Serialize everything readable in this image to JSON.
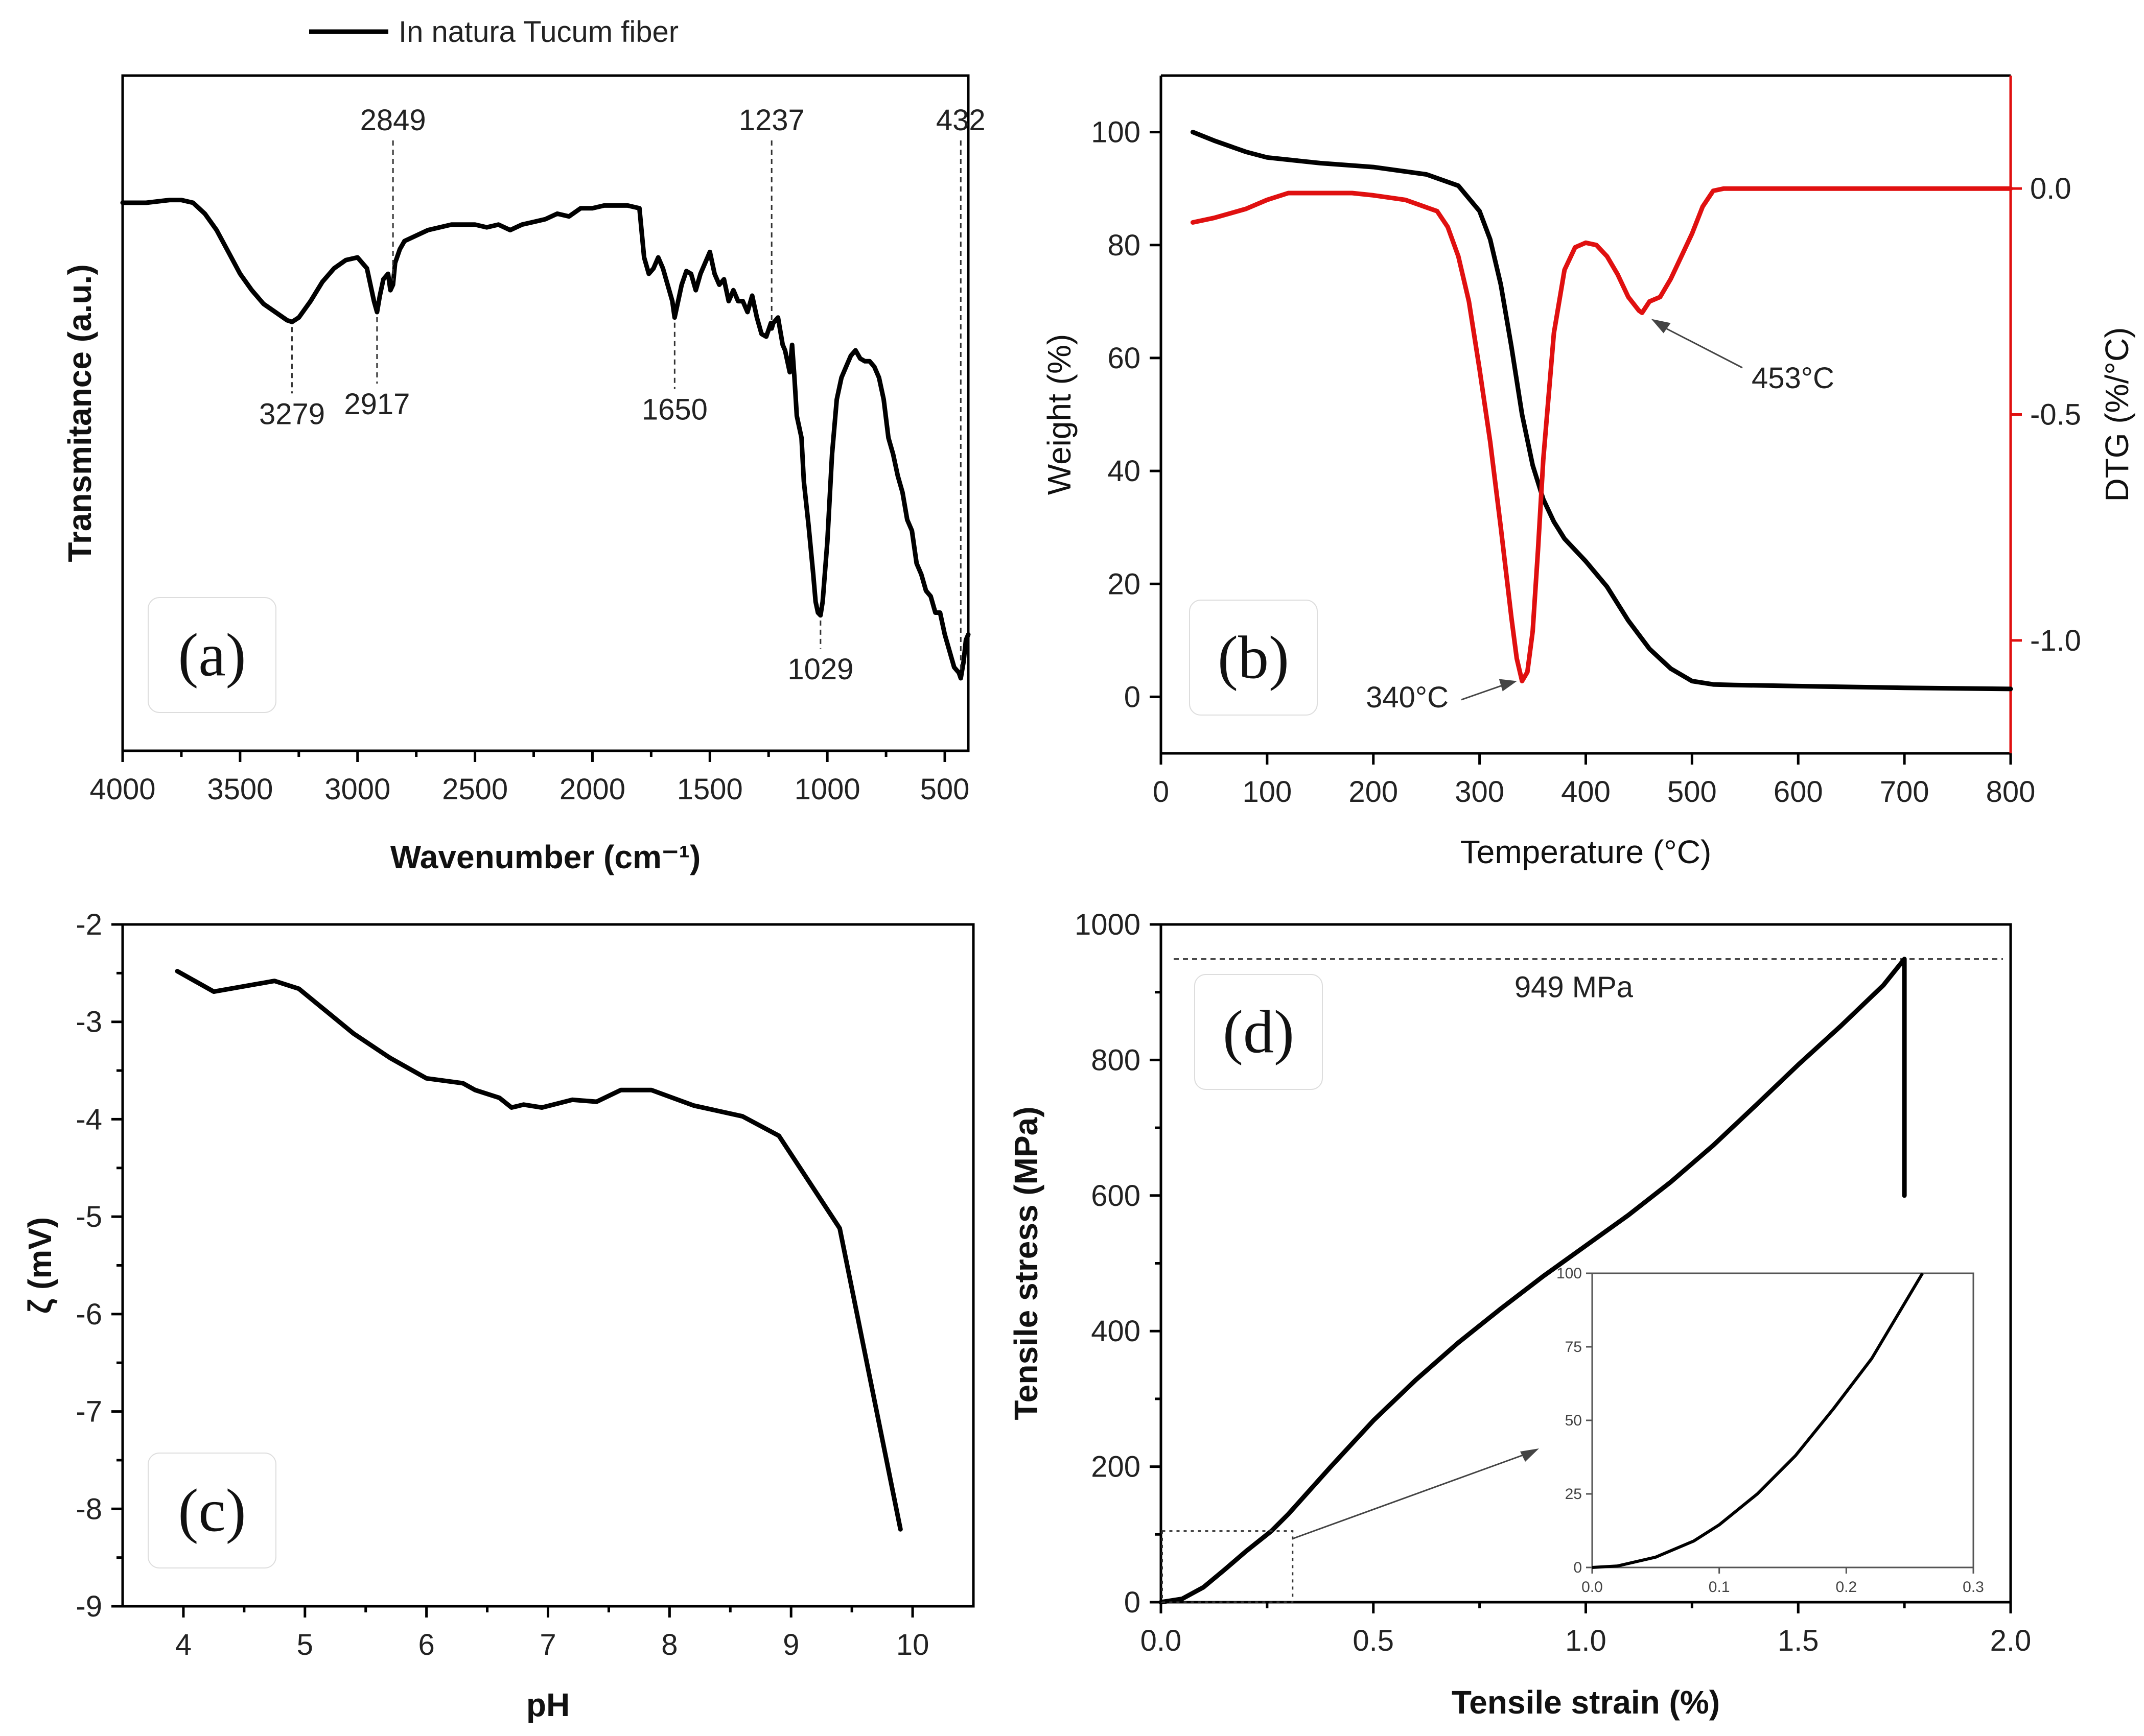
{
  "chart_data": [
    {
      "panel": "a",
      "type": "line",
      "legend": "In natura Tucum fiber",
      "xlabel": "Wavenumber (cm⁻¹)",
      "ylabel": "Transmitance (a.u.)",
      "xlim": [
        4000,
        400
      ],
      "ylim": [
        0,
        1
      ],
      "xticks": [
        4000,
        3500,
        3000,
        2500,
        2000,
        1500,
        1000,
        500
      ],
      "series": [
        {
          "name": "In natura Tucum fiber",
          "x": [
            4000,
            3900,
            3800,
            3750,
            3700,
            3650,
            3600,
            3550,
            3500,
            3450,
            3400,
            3350,
            3300,
            3279,
            3250,
            3200,
            3150,
            3100,
            3050,
            3000,
            2960,
            2940,
            2930,
            2917,
            2905,
            2890,
            2870,
            2860,
            2849,
            2840,
            2820,
            2800,
            2750,
            2700,
            2650,
            2600,
            2550,
            2500,
            2450,
            2400,
            2350,
            2300,
            2250,
            2200,
            2150,
            2100,
            2050,
            2000,
            1950,
            1900,
            1850,
            1800,
            1780,
            1760,
            1740,
            1720,
            1700,
            1680,
            1660,
            1650,
            1640,
            1620,
            1600,
            1580,
            1560,
            1540,
            1520,
            1500,
            1480,
            1460,
            1440,
            1420,
            1400,
            1380,
            1360,
            1340,
            1320,
            1300,
            1280,
            1260,
            1240,
            1237,
            1230,
            1210,
            1190,
            1180,
            1160,
            1150,
            1140,
            1130,
            1110,
            1100,
            1080,
            1060,
            1050,
            1040,
            1029,
            1020,
            1000,
            980,
            960,
            940,
            920,
            900,
            880,
            860,
            840,
            820,
            800,
            780,
            760,
            740,
            720,
            700,
            680,
            660,
            640,
            620,
            600,
            580,
            560,
            540,
            520,
            500,
            480,
            460,
            440,
            432,
            420,
            410,
            400
          ],
          "y": [
            0.9,
            0.9,
            0.905,
            0.905,
            0.9,
            0.88,
            0.85,
            0.81,
            0.77,
            0.74,
            0.715,
            0.7,
            0.685,
            0.682,
            0.69,
            0.72,
            0.755,
            0.78,
            0.795,
            0.8,
            0.78,
            0.74,
            0.72,
            0.7,
            0.73,
            0.76,
            0.77,
            0.74,
            0.75,
            0.79,
            0.815,
            0.83,
            0.84,
            0.85,
            0.855,
            0.86,
            0.86,
            0.86,
            0.855,
            0.86,
            0.85,
            0.86,
            0.865,
            0.87,
            0.88,
            0.875,
            0.89,
            0.89,
            0.895,
            0.895,
            0.895,
            0.89,
            0.8,
            0.77,
            0.78,
            0.8,
            0.78,
            0.75,
            0.72,
            0.69,
            0.71,
            0.75,
            0.775,
            0.77,
            0.74,
            0.77,
            0.79,
            0.81,
            0.77,
            0.75,
            0.76,
            0.72,
            0.74,
            0.72,
            0.72,
            0.7,
            0.73,
            0.69,
            0.66,
            0.655,
            0.68,
            0.67,
            0.68,
            0.69,
            0.64,
            0.63,
            0.59,
            0.64,
            0.58,
            0.51,
            0.47,
            0.39,
            0.31,
            0.22,
            0.17,
            0.15,
            0.145,
            0.17,
            0.28,
            0.44,
            0.54,
            0.58,
            0.6,
            0.62,
            0.63,
            0.615,
            0.61,
            0.61,
            0.6,
            0.58,
            0.54,
            0.47,
            0.44,
            0.4,
            0.37,
            0.32,
            0.3,
            0.24,
            0.22,
            0.19,
            0.18,
            0.15,
            0.15,
            0.11,
            0.08,
            0.05,
            0.04,
            0.03,
            0.06,
            0.1,
            0.11
          ]
        }
      ],
      "annotations": [
        {
          "label": "3279",
          "x": 3279,
          "side": "below"
        },
        {
          "label": "2917",
          "x": 2917,
          "side": "below"
        },
        {
          "label": "2849",
          "x": 2849,
          "side": "above"
        },
        {
          "label": "1650",
          "x": 1650,
          "side": "below"
        },
        {
          "label": "1237",
          "x": 1237,
          "side": "above"
        },
        {
          "label": "1029",
          "x": 1029,
          "side": "below"
        },
        {
          "label": "432",
          "x": 432,
          "side": "above"
        }
      ],
      "panel_label": "(a)"
    },
    {
      "panel": "b",
      "type": "line",
      "xlabel": "Temperature (°C)",
      "ylabel": "Weight (%)",
      "y2label": "DTG (%/°C)",
      "xlim": [
        0,
        800
      ],
      "ylim": [
        -10,
        110
      ],
      "y2lim": [
        -1.25,
        0.25
      ],
      "xticks": [
        0,
        100,
        200,
        300,
        400,
        500,
        600,
        700,
        800
      ],
      "yticks": [
        0,
        20,
        40,
        60,
        80,
        100
      ],
      "y2ticks": [
        0.0,
        -0.5,
        -1.0
      ],
      "y2tick_labels": [
        "0.0",
        "-0.5",
        "-1.0"
      ],
      "series": [
        {
          "name": "Weight",
          "axis": "left",
          "color": "#000000",
          "x": [
            30,
            50,
            80,
            100,
            150,
            200,
            250,
            280,
            300,
            310,
            320,
            330,
            340,
            350,
            360,
            370,
            380,
            400,
            420,
            440,
            460,
            480,
            500,
            520,
            540,
            600,
            700,
            800
          ],
          "y": [
            100,
            98.5,
            96.5,
            95.5,
            94.5,
            93.8,
            92.5,
            90.5,
            86,
            81,
            73,
            62,
            50,
            41,
            35,
            31,
            28,
            24,
            19.5,
            13.5,
            8.5,
            5,
            2.8,
            2.2,
            2.1,
            1.9,
            1.6,
            1.4
          ]
        },
        {
          "name": "DTG",
          "axis": "right",
          "color": "#e01010",
          "x": [
            30,
            50,
            80,
            100,
            120,
            150,
            180,
            200,
            230,
            260,
            270,
            280,
            290,
            300,
            310,
            320,
            330,
            335,
            340,
            345,
            350,
            355,
            360,
            370,
            380,
            390,
            400,
            410,
            420,
            430,
            440,
            450,
            453,
            460,
            470,
            480,
            490,
            500,
            510,
            520,
            530,
            600,
            700,
            800
          ],
          "y": [
            -0.075,
            -0.065,
            -0.045,
            -0.025,
            -0.01,
            -0.01,
            -0.01,
            -0.015,
            -0.025,
            -0.05,
            -0.085,
            -0.15,
            -0.25,
            -0.4,
            -0.56,
            -0.75,
            -0.95,
            -1.04,
            -1.09,
            -1.07,
            -0.98,
            -0.8,
            -0.6,
            -0.32,
            -0.18,
            -0.13,
            -0.12,
            -0.125,
            -0.15,
            -0.19,
            -0.24,
            -0.27,
            -0.275,
            -0.25,
            -0.24,
            -0.2,
            -0.15,
            -0.1,
            -0.04,
            -0.005,
            0.0,
            0.0,
            0.0,
            0.0
          ]
        }
      ],
      "annotations": [
        {
          "label": "340°C",
          "x": 340
        },
        {
          "label": "453°C",
          "x": 453
        }
      ],
      "panel_label": "(b)"
    },
    {
      "panel": "c",
      "type": "line",
      "xlabel": "pH",
      "ylabel": "ζ (mV)",
      "xlim": [
        3.5,
        10.5
      ],
      "ylim": [
        -9,
        -2
      ],
      "xticks": [
        4,
        5,
        6,
        7,
        8,
        9,
        10
      ],
      "yticks": [
        -2,
        -3,
        -4,
        -5,
        -6,
        -7,
        -8,
        -9
      ],
      "series": [
        {
          "name": "Zeta potential",
          "x": [
            3.95,
            4.25,
            4.75,
            4.95,
            5.4,
            5.7,
            6.0,
            6.3,
            6.4,
            6.6,
            6.7,
            6.8,
            6.95,
            7.2,
            7.4,
            7.6,
            7.85,
            8.2,
            8.6,
            8.9,
            9.4,
            9.9
          ],
          "y": [
            -2.48,
            -2.69,
            -2.58,
            -2.66,
            -3.12,
            -3.37,
            -3.58,
            -3.63,
            -3.7,
            -3.78,
            -3.88,
            -3.85,
            -3.88,
            -3.8,
            -3.82,
            -3.7,
            -3.7,
            -3.86,
            -3.97,
            -4.17,
            -5.12,
            -8.21
          ]
        }
      ],
      "panel_label": "(c)"
    },
    {
      "panel": "d",
      "type": "line",
      "xlabel": "Tensile strain (%)",
      "ylabel": "Tensile stress (MPa)",
      "xlim": [
        0,
        2
      ],
      "ylim": [
        0,
        1000
      ],
      "xticks": [
        0.0,
        0.5,
        1.0,
        1.5,
        2.0
      ],
      "xtick_labels": [
        "0.0",
        "0.5",
        "1.0",
        "1.5",
        "2.0"
      ],
      "yticks": [
        0,
        200,
        400,
        600,
        800,
        1000
      ],
      "series": [
        {
          "name": "Stress-strain",
          "x": [
            0,
            0.05,
            0.1,
            0.15,
            0.2,
            0.26,
            0.3,
            0.4,
            0.5,
            0.6,
            0.7,
            0.8,
            0.9,
            1.0,
            1.1,
            1.2,
            1.3,
            1.4,
            1.5,
            1.6,
            1.7,
            1.75,
            1.75
          ],
          "y": [
            0,
            5,
            22,
            48,
            75,
            105,
            130,
            200,
            268,
            328,
            383,
            433,
            481,
            526,
            571,
            620,
            674,
            733,
            793,
            850,
            910,
            949,
            600
          ]
        }
      ],
      "reference_line": {
        "y": 949,
        "label": "949 MPa"
      },
      "inset": {
        "xlim": [
          0,
          0.3
        ],
        "ylim": [
          0,
          100
        ],
        "xticks": [
          0.0,
          0.1,
          0.2,
          0.3
        ],
        "xtick_labels": [
          "0.0",
          "0.1",
          "0.2",
          "0.3"
        ],
        "yticks": [
          0,
          25,
          50,
          75,
          100
        ],
        "x": [
          0,
          0.02,
          0.05,
          0.08,
          0.1,
          0.13,
          0.16,
          0.19,
          0.22,
          0.26
        ],
        "y": [
          0,
          0.5,
          3.5,
          9,
          14.5,
          25,
          38,
          54,
          71,
          100
        ]
      },
      "panel_label": "(d)"
    }
  ]
}
